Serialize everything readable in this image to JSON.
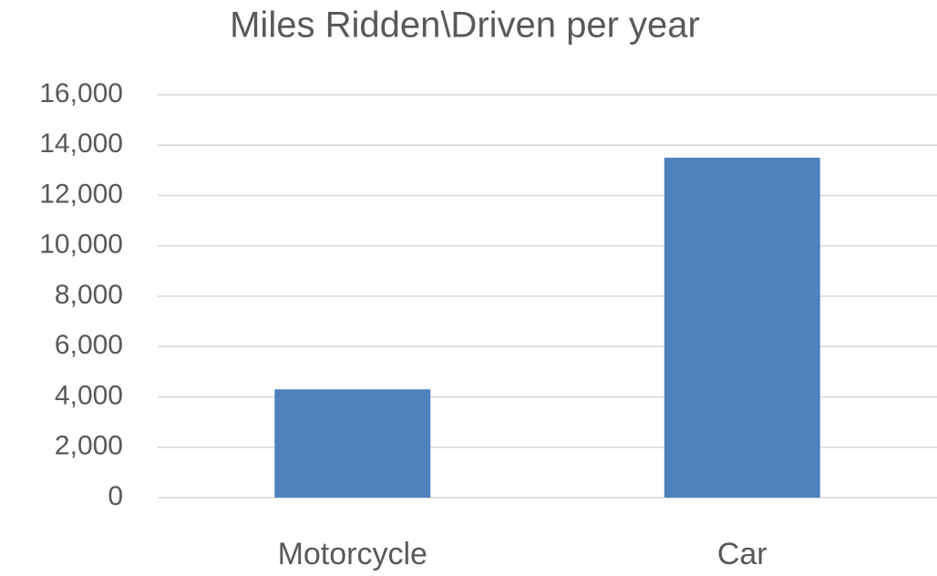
{
  "chart_data": {
    "type": "bar",
    "title": "Miles Ridden\\Driven per year",
    "categories": [
      "Motorcycle",
      "Car"
    ],
    "values": [
      4300,
      13500
    ],
    "color": "#4f81bd",
    "ylim": [
      0,
      16000
    ],
    "yticks": [
      0,
      {
        "value": 2000,
        "label": "2,000"
      },
      {
        "value": 4000,
        "label": "4,000"
      },
      {
        "value": 6000,
        "label": "6,000"
      },
      {
        "value": 8000,
        "label": "8,000"
      },
      {
        "value": 10000,
        "label": "10,000"
      },
      {
        "value": 12000,
        "label": "12,000"
      },
      {
        "value": 14000,
        "label": "14,000"
      },
      {
        "value": 16000,
        "label": "16,000"
      }
    ],
    "grid": true
  }
}
